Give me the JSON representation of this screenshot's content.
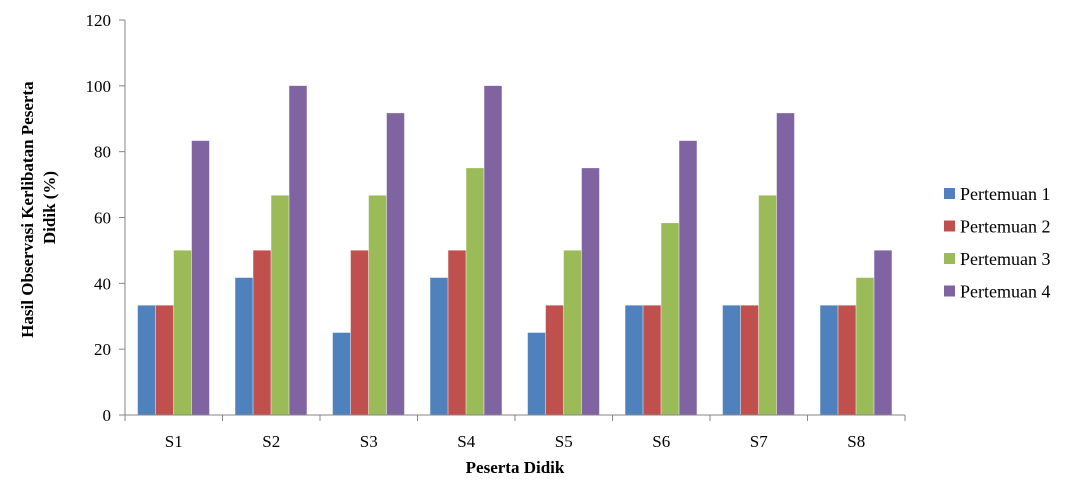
{
  "chart_data": {
    "type": "bar",
    "title": "",
    "xlabel": "Peserta Didik",
    "ylabel_lines": [
      "Hasil Observasi Kerlibatan Peserta",
      "Didik (%)"
    ],
    "categories": [
      "S1",
      "S2",
      "S3",
      "S4",
      "S5",
      "S6",
      "S7",
      "S8"
    ],
    "ylim": [
      0,
      120
    ],
    "yticks": [
      "0",
      "20",
      "40",
      "60",
      "80",
      "100",
      "120"
    ],
    "grid": false,
    "legend_position": "right",
    "series": [
      {
        "name": "Pertemuan 1",
        "color": "#4F81BD",
        "values": [
          33.3,
          41.7,
          25,
          41.7,
          25,
          33.3,
          33.3,
          33.3
        ]
      },
      {
        "name": "Pertemuan 2",
        "color": "#C0504D",
        "values": [
          33.3,
          50,
          50,
          50,
          33.3,
          33.3,
          33.3,
          33.3
        ]
      },
      {
        "name": "Pertemuan 3",
        "color": "#9BBB59",
        "values": [
          50,
          66.7,
          66.7,
          75,
          50,
          58.3,
          66.7,
          41.7
        ]
      },
      {
        "name": "Pertemuan 4",
        "color": "#8064A2",
        "values": [
          83.3,
          100,
          91.7,
          100,
          75,
          83.3,
          91.7,
          50
        ]
      }
    ]
  }
}
